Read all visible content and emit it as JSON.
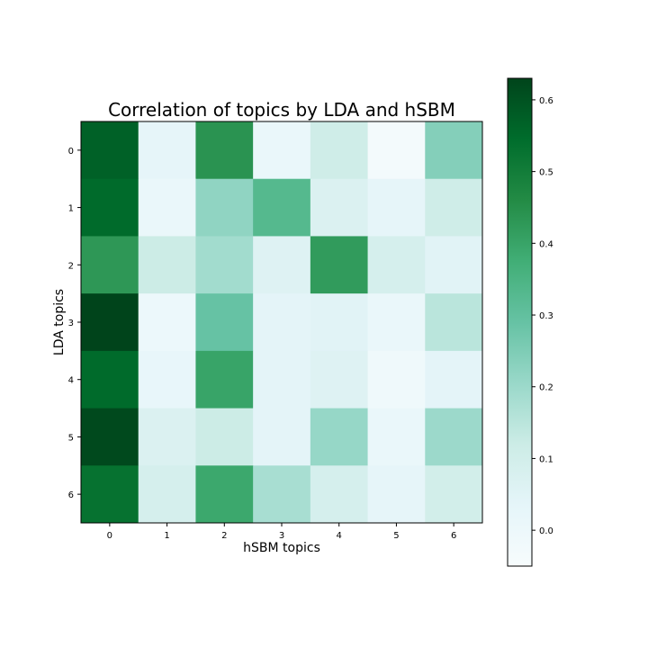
{
  "chart_data": {
    "type": "heatmap",
    "title": "Correlation of topics by LDA and hSBM",
    "xlabel": "hSBM topics",
    "ylabel": "LDA topics",
    "x_categories": [
      "0",
      "1",
      "2",
      "3",
      "4",
      "5",
      "6"
    ],
    "y_categories": [
      "0",
      "1",
      "2",
      "3",
      "4",
      "5",
      "6"
    ],
    "values": [
      [
        0.57,
        0.03,
        0.44,
        0.01,
        0.11,
        -0.03,
        0.24
      ],
      [
        0.55,
        0.01,
        0.22,
        0.33,
        0.07,
        0.03,
        0.11
      ],
      [
        0.43,
        0.12,
        0.19,
        0.06,
        0.42,
        0.09,
        0.05
      ],
      [
        0.63,
        0.0,
        0.29,
        0.04,
        0.05,
        0.01,
        0.15
      ],
      [
        0.55,
        0.02,
        0.4,
        0.04,
        0.06,
        -0.01,
        0.04
      ],
      [
        0.62,
        0.07,
        0.12,
        0.04,
        0.21,
        0.01,
        0.2
      ],
      [
        0.53,
        0.09,
        0.39,
        0.18,
        0.09,
        0.03,
        0.1
      ]
    ],
    "colormap": "BuGn",
    "colorbar": {
      "min": -0.05,
      "max": 0.63,
      "ticks": [
        0.0,
        0.1,
        0.2,
        0.3,
        0.4,
        0.5,
        0.6
      ],
      "tick_labels": [
        "0.0",
        "0.1",
        "0.2",
        "0.3",
        "0.4",
        "0.5",
        "0.6"
      ]
    },
    "grid": false
  }
}
